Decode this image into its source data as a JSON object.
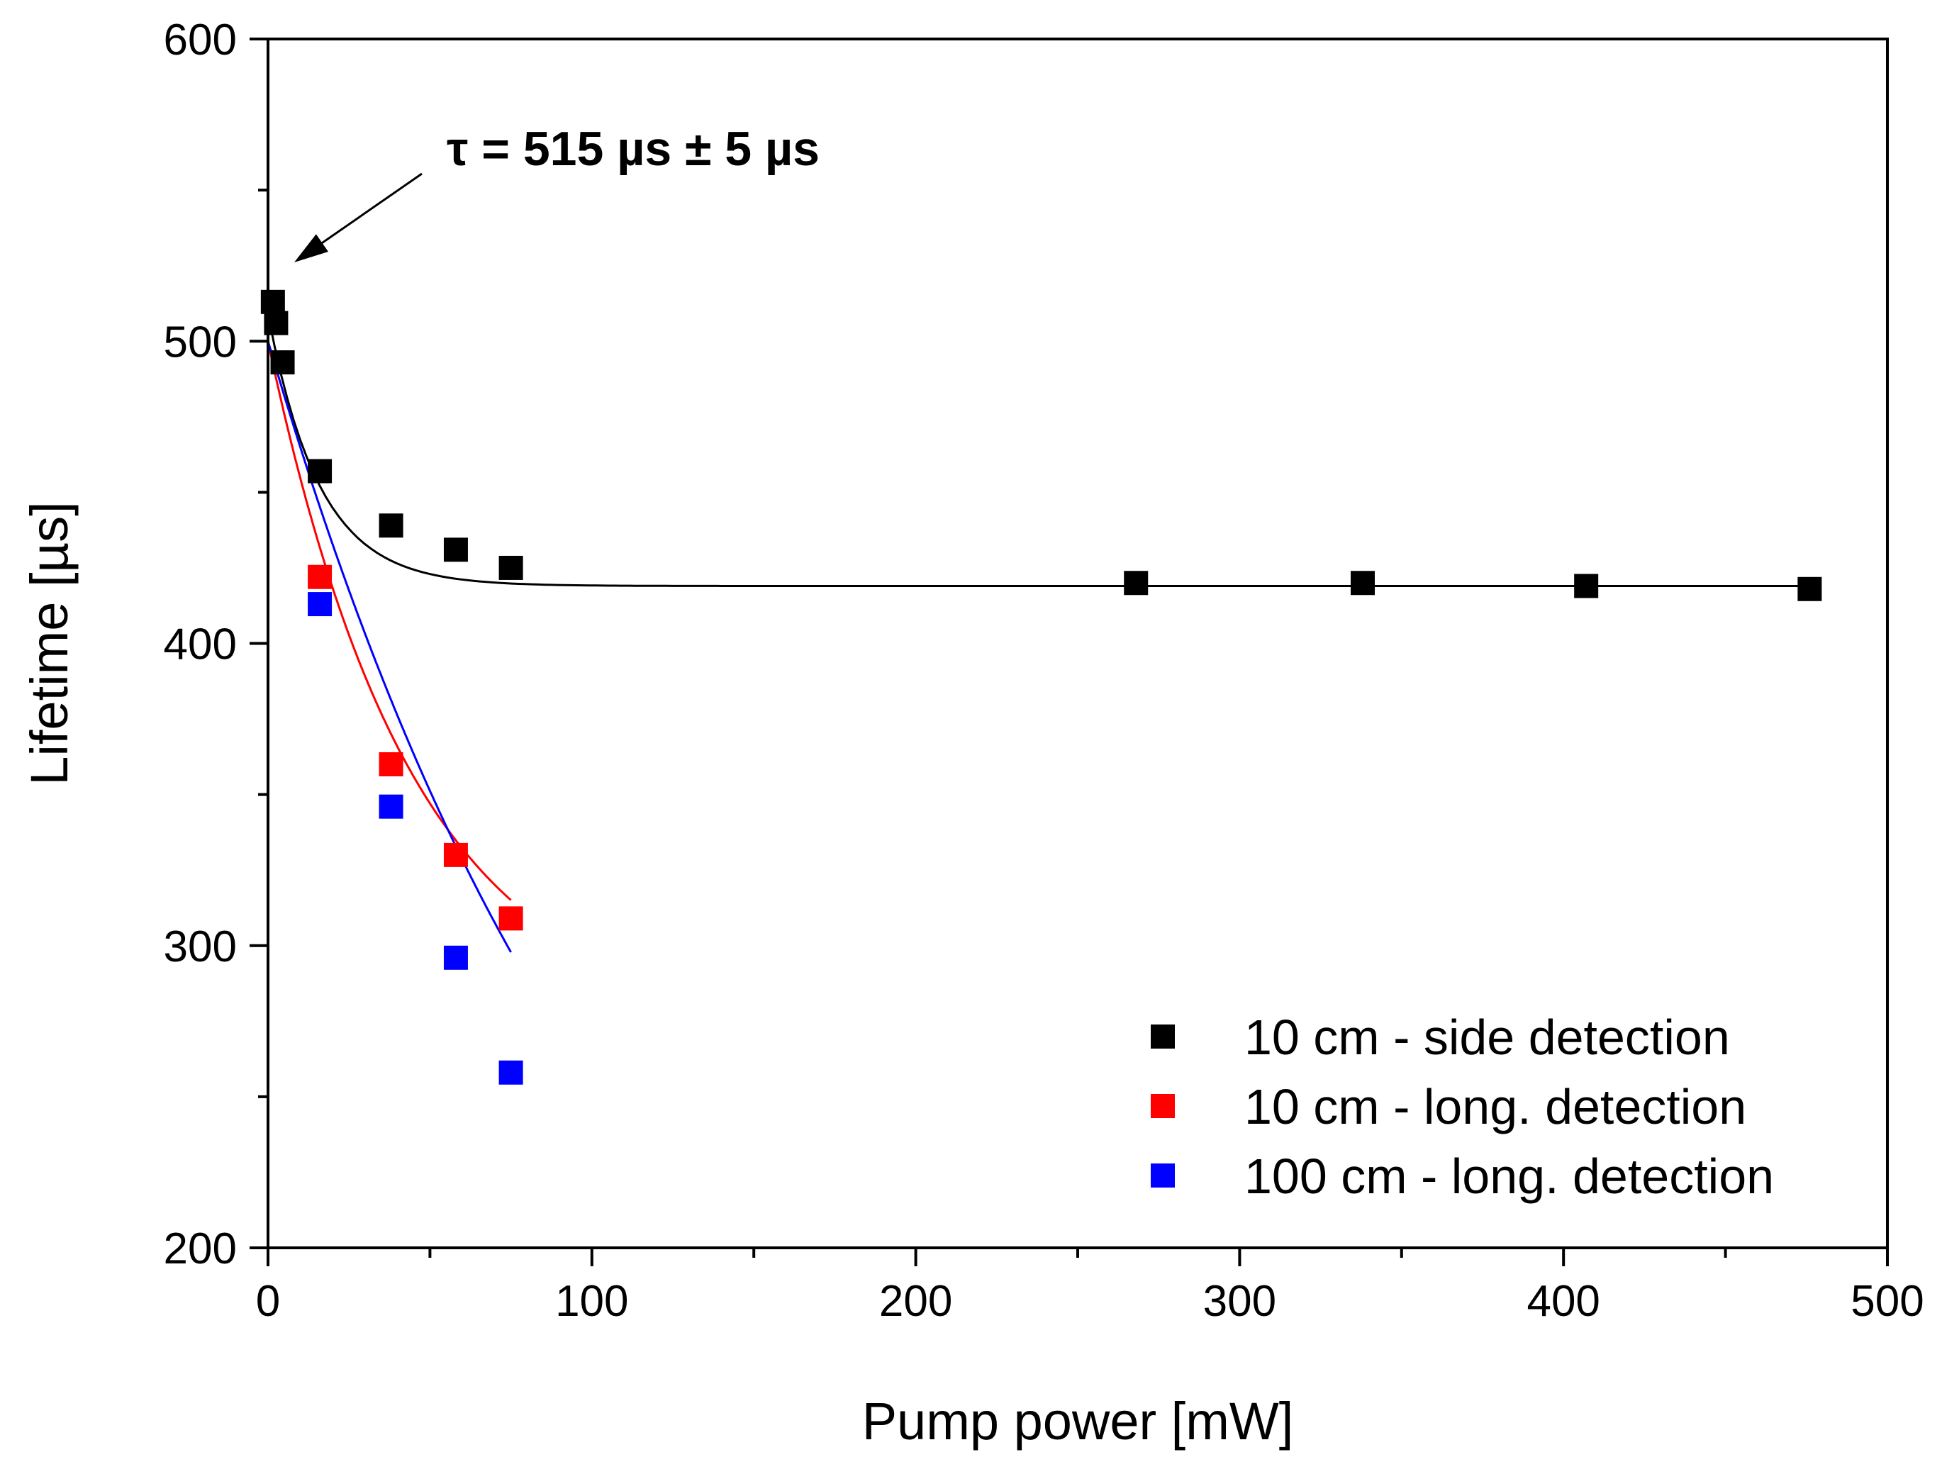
{
  "chart_data": {
    "type": "scatter",
    "title": "",
    "xlabel": "Pump power [mW]",
    "ylabel": "Lifetime [µs]",
    "xlim": [
      0,
      500
    ],
    "ylim": [
      200,
      600
    ],
    "x_ticks": [
      0,
      100,
      200,
      300,
      400,
      500
    ],
    "y_ticks": [
      200,
      300,
      400,
      500,
      600
    ],
    "x_minor_step": 50,
    "y_minor_step": 50,
    "grid": false,
    "legend_position": "bottom-right",
    "annotation": {
      "text": "τ = 515 µs ± 5 µs",
      "x": 8,
      "y": 525
    },
    "series": [
      {
        "name": "10 cm - side detection",
        "color": "#000000",
        "x": [
          1.5,
          2.5,
          4.5,
          16,
          38,
          58,
          75,
          268,
          338,
          407,
          476
        ],
        "y": [
          513,
          506,
          493,
          457,
          439,
          431,
          425,
          420,
          420,
          419,
          418
        ],
        "fit": {
          "model": "exp-decay",
          "offset": 419,
          "amplitude": 90,
          "decay": 16,
          "x_range": [
            0,
            476
          ]
        }
      },
      {
        "name": "10 cm - long. detection",
        "color": "#ff0000",
        "x": [
          16,
          38,
          58,
          75
        ],
        "y": [
          422,
          360,
          330,
          309
        ],
        "fit": {
          "model": "exp-decay",
          "offset": 272,
          "amplitude": 228,
          "decay": 45,
          "x_range": [
            0,
            75
          ]
        }
      },
      {
        "name": "100 cm - long. detection",
        "color": "#0000ff",
        "x": [
          16,
          38,
          58,
          75
        ],
        "y": [
          413,
          346,
          296,
          258
        ],
        "fit": {
          "model": "exp-decay",
          "offset": 78,
          "amplitude": 422,
          "decay": 115,
          "x_range": [
            0,
            75
          ]
        }
      }
    ]
  }
}
